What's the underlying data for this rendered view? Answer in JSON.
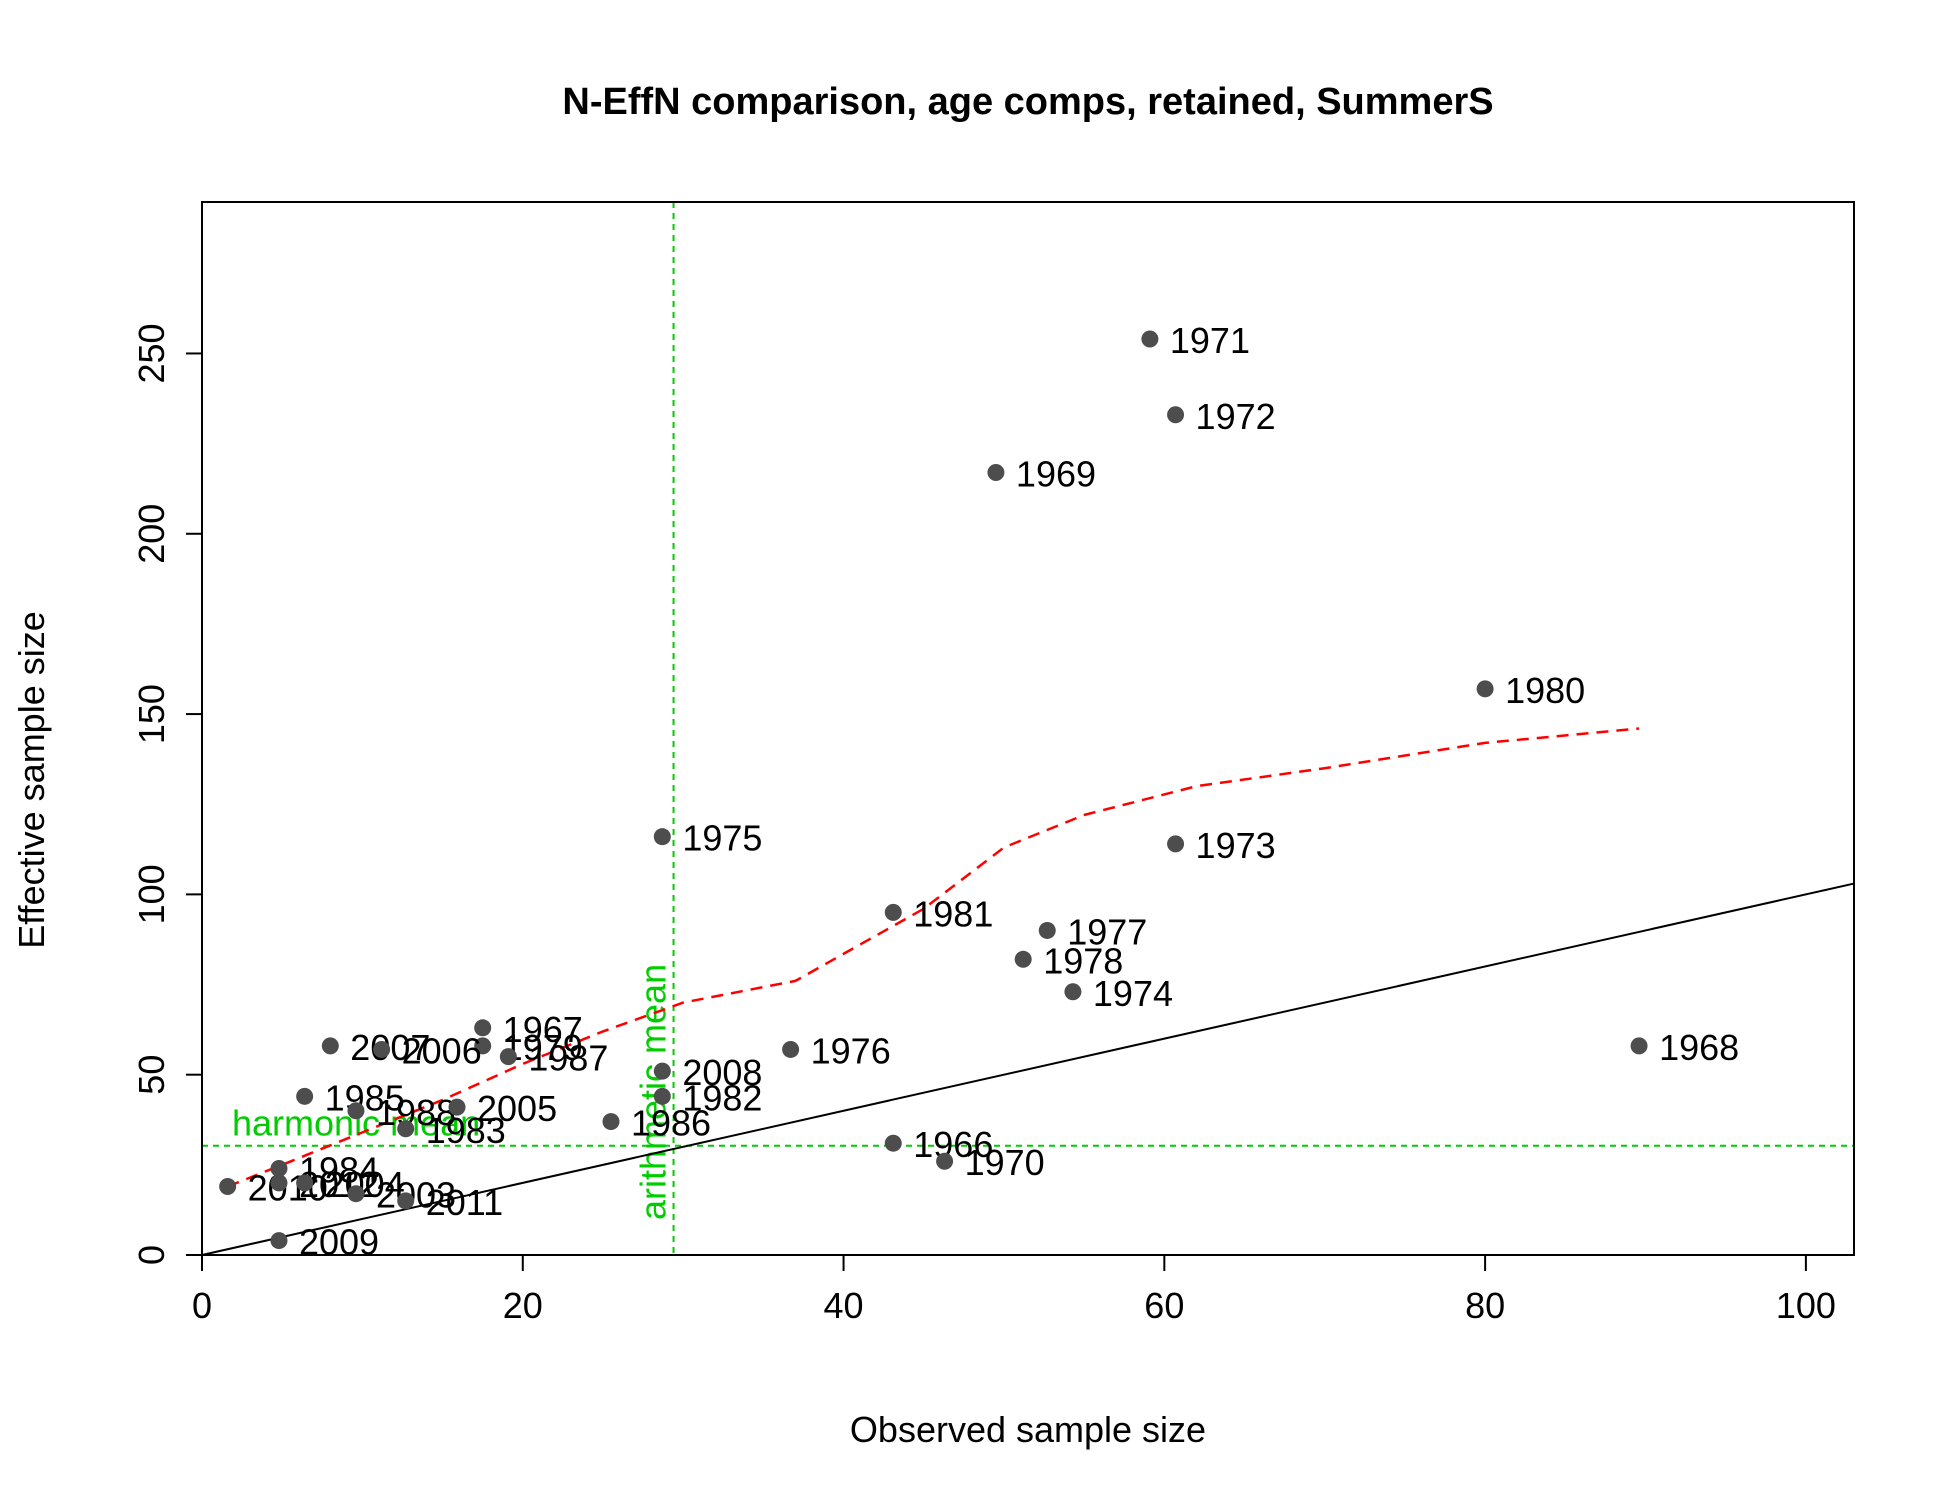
{
  "chart_data": {
    "type": "scatter",
    "title": "N-EffN comparison, age comps, retained, SummerS",
    "xlabel": "Observed sample size",
    "ylabel": "Effective sample size",
    "xlim": [
      0,
      103
    ],
    "ylim": [
      0,
      292
    ],
    "x_ticks": [
      0,
      20,
      40,
      60,
      80,
      100
    ],
    "y_ticks": [
      0,
      50,
      100,
      150,
      200,
      250
    ],
    "x_tick_labels": [
      "0",
      "20",
      "40",
      "60",
      "80",
      "100"
    ],
    "y_tick_labels": [
      "0",
      "50",
      "100",
      "150",
      "200",
      "250"
    ],
    "points": [
      {
        "label": "1971",
        "x": 59.1,
        "y": 254
      },
      {
        "label": "1972",
        "x": 60.7,
        "y": 233
      },
      {
        "label": "1969",
        "x": 49.5,
        "y": 217
      },
      {
        "label": "1980",
        "x": 80.0,
        "y": 157
      },
      {
        "label": "1975",
        "x": 28.7,
        "y": 116
      },
      {
        "label": "1973",
        "x": 60.7,
        "y": 114
      },
      {
        "label": "1981",
        "x": 43.1,
        "y": 95
      },
      {
        "label": "1977",
        "x": 52.7,
        "y": 90
      },
      {
        "label": "1978",
        "x": 51.2,
        "y": 82
      },
      {
        "label": "1974",
        "x": 54.3,
        "y": 73
      },
      {
        "label": "1968",
        "x": 89.6,
        "y": 58
      },
      {
        "label": "1976",
        "x": 36.7,
        "y": 57
      },
      {
        "label": "1967",
        "x": 17.5,
        "y": 63
      },
      {
        "label": "1979",
        "x": 17.5,
        "y": 58
      },
      {
        "label": "1987",
        "x": 19.1,
        "y": 55
      },
      {
        "label": "2007",
        "x": 8.0,
        "y": 58
      },
      {
        "label": "2006",
        "x": 11.2,
        "y": 57
      },
      {
        "label": "2008",
        "x": 28.7,
        "y": 51
      },
      {
        "label": "1985",
        "x": 6.4,
        "y": 44
      },
      {
        "label": "1982",
        "x": 28.7,
        "y": 44
      },
      {
        "label": "1988",
        "x": 9.6,
        "y": 40
      },
      {
        "label": "2005",
        "x": 15.9,
        "y": 41
      },
      {
        "label": "1986",
        "x": 25.5,
        "y": 37
      },
      {
        "label": "1983",
        "x": 12.7,
        "y": 35
      },
      {
        "label": "1966",
        "x": 43.1,
        "y": 31
      },
      {
        "label": "1970",
        "x": 46.3,
        "y": 26
      },
      {
        "label": "1984",
        "x": 4.8,
        "y": 24
      },
      {
        "label": "2010",
        "x": 1.6,
        "y": 19
      },
      {
        "label": "2012",
        "x": 4.8,
        "y": 20
      },
      {
        "label": "2004",
        "x": 6.4,
        "y": 20
      },
      {
        "label": "2003",
        "x": 9.6,
        "y": 17
      },
      {
        "label": "2011",
        "x": 12.7,
        "y": 15
      },
      {
        "label": "2009",
        "x": 4.8,
        "y": 4
      }
    ],
    "one_to_one_line": {
      "from": [
        0,
        0
      ],
      "to": [
        103,
        103
      ],
      "color": "#000000"
    },
    "loess_fit": {
      "color": "#ff0000",
      "points": [
        [
          1.6,
          19
        ],
        [
          5,
          25
        ],
        [
          10,
          34
        ],
        [
          15,
          43
        ],
        [
          20,
          53
        ],
        [
          25,
          62
        ],
        [
          30,
          70
        ],
        [
          37,
          76
        ],
        [
          45,
          96
        ],
        [
          50,
          113
        ],
        [
          55,
          122
        ],
        [
          62,
          130
        ],
        [
          70,
          135
        ],
        [
          80,
          142
        ],
        [
          89.6,
          146
        ]
      ]
    },
    "harmonic_mean": {
      "label": "harmonic mean",
      "y": 30.3,
      "color": "#00cc00"
    },
    "arithmetic_mean": {
      "label": "arithmetic mean",
      "x": 29.4,
      "color": "#00cc00"
    },
    "point_color": "#4d4d4d",
    "grid": false
  }
}
